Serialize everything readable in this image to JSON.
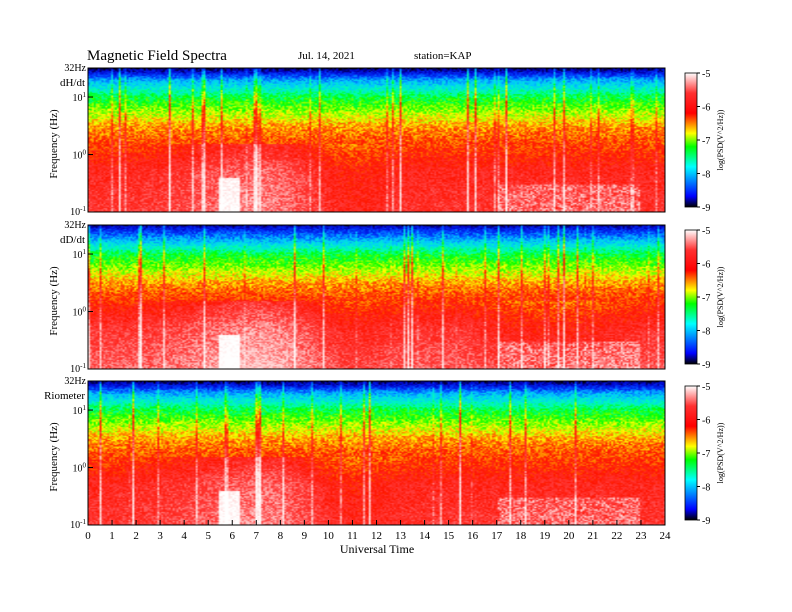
{
  "header": {
    "title": "Magnetic Field Spectra",
    "date": "Jul. 14, 2021",
    "station": "station=KAP"
  },
  "chart_data": {
    "type": "heatmap",
    "xlabel": "Universal Time",
    "x_ticks": [
      "0",
      "1",
      "2",
      "3",
      "4",
      "5",
      "6",
      "7",
      "8",
      "9",
      "10",
      "11",
      "12",
      "13",
      "14",
      "15",
      "16",
      "17",
      "18",
      "19",
      "20",
      "21",
      "22",
      "23",
      "24"
    ],
    "xlim": [
      0,
      24
    ],
    "colorbar": {
      "label": "log(PSD(V^2/Hz))",
      "ticks": [
        "-5",
        "-6",
        "-7",
        "-8",
        "-9"
      ],
      "range": [
        -9,
        -5
      ],
      "colors": [
        "#000000",
        "#0000ff",
        "#00ffff",
        "#00ff00",
        "#ffff00",
        "#ff0000",
        "#ffffff"
      ]
    },
    "panels": [
      {
        "name": "dH/dt",
        "ylabel": "Frequency (Hz)",
        "y_ticks": {
          "top": "32Hz",
          "ten": "10^1",
          "one": "10^0",
          "tenth": "10^-1"
        },
        "ylim_hz": [
          0.1,
          32
        ],
        "profile": [
          [
            0.1,
            -6.0
          ],
          [
            0.5,
            -6.1
          ],
          [
            1.0,
            -6.3
          ],
          [
            3.0,
            -6.6
          ],
          [
            5.0,
            -6.9
          ],
          [
            10.0,
            -7.3
          ],
          [
            20.0,
            -8.0
          ],
          [
            26.0,
            -8.5
          ],
          [
            32.0,
            -8.9
          ]
        ]
      },
      {
        "name": "dD/dt",
        "ylabel": "Frequency (Hz)",
        "y_ticks": {
          "top": "32Hz",
          "ten": "10^1",
          "one": "10^0",
          "tenth": "10^-1"
        },
        "ylim_hz": [
          0.1,
          32
        ],
        "profile": [
          [
            0.1,
            -5.8
          ],
          [
            0.5,
            -6.0
          ],
          [
            1.0,
            -6.2
          ],
          [
            3.0,
            -6.6
          ],
          [
            5.0,
            -6.9
          ],
          [
            10.0,
            -7.3
          ],
          [
            20.0,
            -8.1
          ],
          [
            26.0,
            -8.4
          ],
          [
            32.0,
            -8.8
          ]
        ]
      },
      {
        "name": "Riometer",
        "ylabel": "Frequency (Hz)",
        "y_ticks": {
          "top": "32Hz",
          "ten": "10^1",
          "one": "10^0",
          "tenth": "10^-1"
        },
        "ylim_hz": [
          0.1,
          32
        ],
        "profile": [
          [
            0.1,
            -6.0
          ],
          [
            0.5,
            -6.1
          ],
          [
            1.0,
            -6.3
          ],
          [
            3.0,
            -6.6
          ],
          [
            5.0,
            -6.9
          ],
          [
            10.0,
            -7.3
          ],
          [
            20.0,
            -8.0
          ],
          [
            26.0,
            -8.5
          ],
          [
            32.0,
            -8.9
          ]
        ]
      }
    ]
  }
}
